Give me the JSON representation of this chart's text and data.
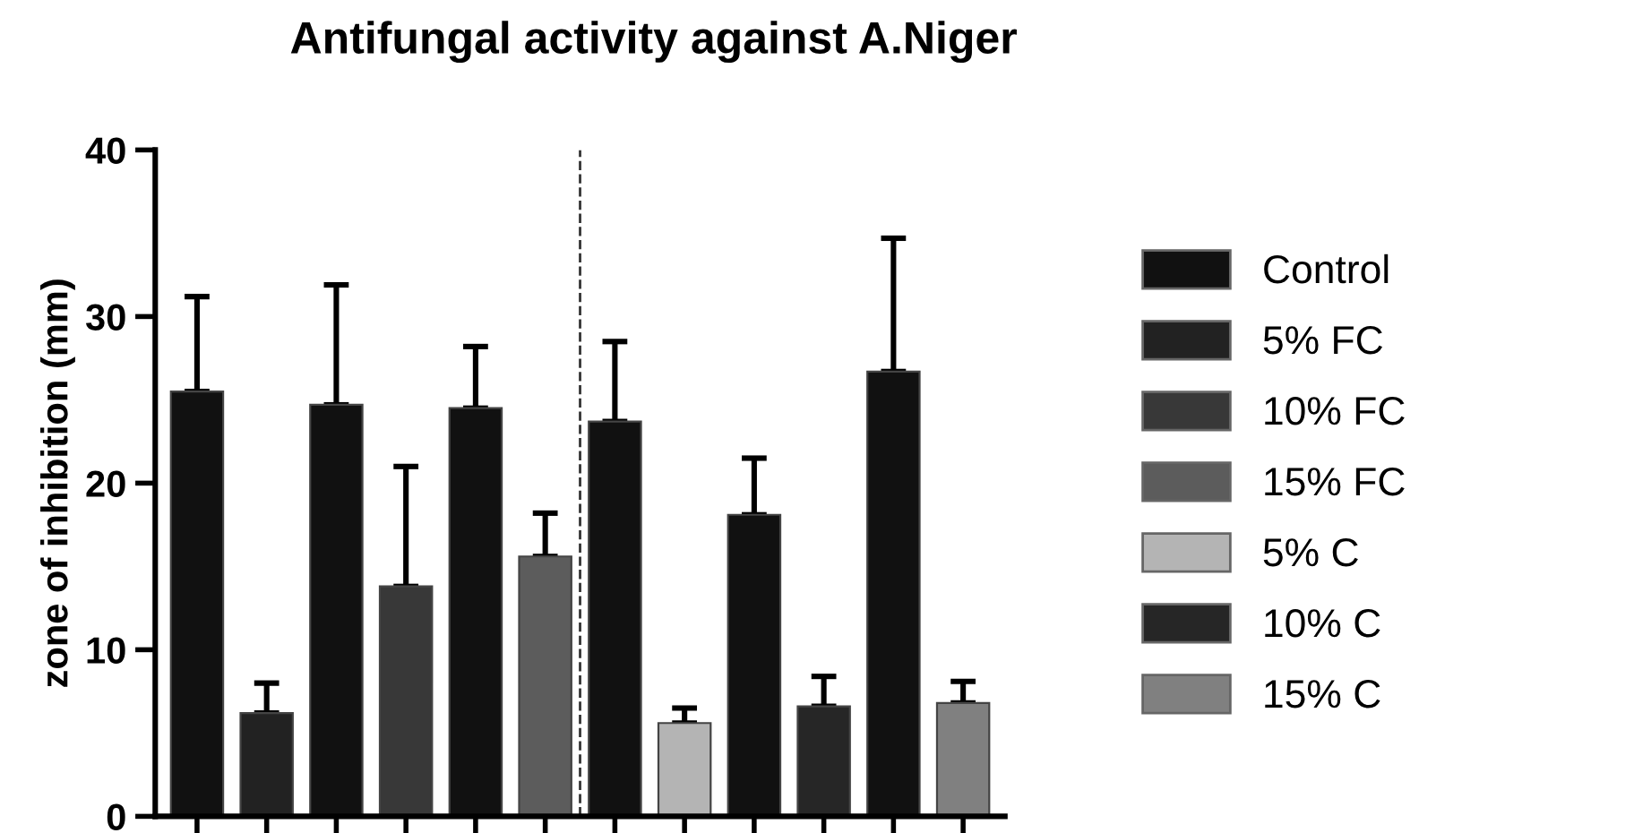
{
  "chart_data": {
    "type": "bar",
    "title": "Antifungal activity against A.Niger",
    "ylabel": "zone of inhibition (mm)",
    "categories": [
      null,
      null,
      null,
      null,
      null,
      null,
      null,
      null,
      null,
      null,
      null,
      null
    ],
    "series": [
      {
        "name": "Control",
        "color": "#111111",
        "values": [
          25.5,
          null,
          24.7,
          null,
          24.5,
          null,
          23.7,
          null,
          18.1,
          null,
          26.7,
          null
        ],
        "errors": [
          [
            25.5,
            31.2
          ],
          null,
          [
            24.7,
            31.9
          ],
          null,
          [
            24.5,
            28.2
          ],
          null,
          [
            23.7,
            28.5
          ],
          null,
          [
            18.1,
            21.5
          ],
          null,
          [
            26.7,
            34.7
          ],
          null
        ]
      },
      {
        "name": "5% FC",
        "color": "#222222",
        "values": [
          null,
          6.2,
          null,
          null,
          null,
          null,
          null,
          null,
          null,
          null,
          null,
          null
        ],
        "errors": [
          null,
          [
            6.2,
            8.0
          ],
          null,
          null,
          null,
          null,
          null,
          null,
          null,
          null,
          null,
          null
        ]
      },
      {
        "name": "10% FC",
        "color": "#383838",
        "values": [
          null,
          null,
          null,
          13.8,
          null,
          null,
          null,
          null,
          null,
          null,
          null,
          null
        ],
        "errors": [
          null,
          null,
          null,
          [
            13.8,
            21.0
          ],
          null,
          null,
          null,
          null,
          null,
          null,
          null,
          null
        ]
      },
      {
        "name": "15% FC",
        "color": "#5c5c5c",
        "values": [
          null,
          null,
          null,
          null,
          null,
          15.6,
          null,
          null,
          null,
          null,
          null,
          null
        ],
        "errors": [
          null,
          null,
          null,
          null,
          null,
          [
            15.6,
            18.2
          ],
          null,
          null,
          null,
          null,
          null,
          null
        ]
      },
      {
        "name": "5% C",
        "color": "#b4b4b4",
        "values": [
          null,
          null,
          null,
          null,
          null,
          null,
          null,
          5.6,
          null,
          null,
          null,
          null
        ],
        "errors": [
          null,
          null,
          null,
          null,
          null,
          null,
          null,
          [
            5.6,
            6.5
          ],
          null,
          null,
          null,
          null
        ]
      },
      {
        "name": "10% C",
        "color": "#262626",
        "values": [
          null,
          null,
          null,
          null,
          null,
          null,
          null,
          null,
          null,
          6.6,
          null,
          null
        ],
        "errors": [
          null,
          null,
          null,
          null,
          null,
          null,
          null,
          null,
          null,
          [
            6.6,
            8.4
          ],
          null,
          null
        ]
      },
      {
        "name": "15% C",
        "color": "#808080",
        "values": [
          null,
          null,
          null,
          null,
          null,
          null,
          null,
          null,
          null,
          null,
          null,
          6.8
        ],
        "errors": [
          null,
          null,
          null,
          null,
          null,
          null,
          null,
          null,
          null,
          null,
          null,
          [
            6.8,
            8.1
          ]
        ]
      }
    ],
    "ylim": [
      0,
      40
    ],
    "yticks": [
      0,
      10,
      20,
      30,
      40
    ],
    "legend": "right",
    "grid": false,
    "tick_labels": "y"
  }
}
